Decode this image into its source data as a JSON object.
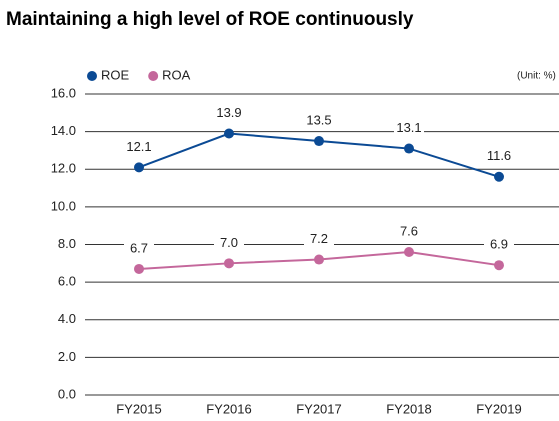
{
  "chart_data": {
    "type": "line",
    "title": "Maintaining a high level of ROE continuously",
    "unit": "(Unit: %)",
    "categories": [
      "FY2015",
      "FY2016",
      "FY2017",
      "FY2018",
      "FY2019"
    ],
    "series": [
      {
        "name": "ROE",
        "color": "#0b4a94",
        "values": [
          12.1,
          13.9,
          13.5,
          13.1,
          11.6
        ],
        "value_labels": [
          "12.1",
          "13.9",
          "13.5",
          "13.1",
          "11.6"
        ]
      },
      {
        "name": "ROA",
        "color": "#c4679b",
        "values": [
          6.7,
          7.0,
          7.2,
          7.6,
          6.9
        ],
        "value_labels": [
          "6.7",
          "7.0",
          "7.2",
          "7.6",
          "6.9"
        ]
      }
    ],
    "ylim": [
      0,
      16
    ],
    "yticks": [
      {
        "value": 0,
        "label": "0.0"
      },
      {
        "value": 2,
        "label": "2.0"
      },
      {
        "value": 4,
        "label": "4.0"
      },
      {
        "value": 6,
        "label": "6.0"
      },
      {
        "value": 8,
        "label": "8.0"
      },
      {
        "value": 10,
        "label": "10.0"
      },
      {
        "value": 12,
        "label": "12.0"
      },
      {
        "value": 14,
        "label": "14.0"
      },
      {
        "value": 16,
        "label": "16.0"
      }
    ],
    "grid": true,
    "legend": "top-left"
  }
}
